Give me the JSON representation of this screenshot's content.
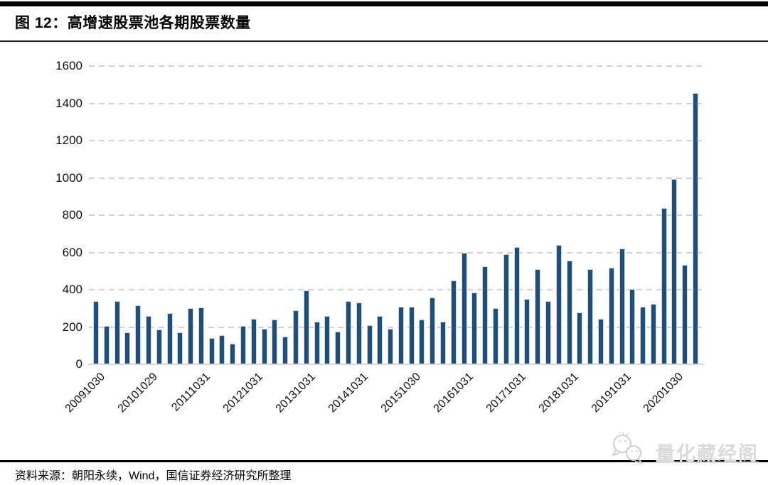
{
  "header": {
    "title": "图 12：高增速股票池各期股票数量"
  },
  "footer": {
    "source": "资料来源：朝阳永续，Wind，国信证券经济研究所整理"
  },
  "watermark": {
    "text": "量化藏经阁",
    "icon": "wechat-chat-bubbles-icon",
    "color": "#d8d8d8"
  },
  "colors": {
    "bar_fill": "#1F4E79",
    "bar_border": "#ccd9e6",
    "gridline": "#d2d2d2",
    "baseline": "#d9d9d9",
    "rule_black": "#000000"
  },
  "chart_data": {
    "type": "bar",
    "title": "图 12：高增速股票池各期股票数量",
    "xlabel": "",
    "ylabel": "",
    "ylim": [
      0,
      1600
    ],
    "y_ticks": [
      0,
      200,
      400,
      600,
      800,
      1000,
      1200,
      1400,
      1600
    ],
    "grid": "horizontal-dashed",
    "legend": "none",
    "n_bars": 58,
    "values": [
      340,
      205,
      340,
      170,
      315,
      260,
      185,
      275,
      170,
      300,
      305,
      140,
      155,
      110,
      205,
      245,
      190,
      240,
      150,
      290,
      395,
      230,
      260,
      175,
      340,
      330,
      210,
      260,
      190,
      310,
      310,
      240,
      360,
      230,
      450,
      600,
      385,
      525,
      300,
      590,
      630,
      350,
      510,
      340,
      640,
      555,
      280,
      510,
      245,
      520,
      620,
      405,
      310,
      325,
      840,
      995,
      535,
      1455
    ],
    "x_tick_labels": [
      "20091030",
      "20101029",
      "20111031",
      "20121031",
      "20131031",
      "20141031",
      "20151030",
      "20161031",
      "20171031",
      "20181031",
      "20191031",
      "20201030"
    ],
    "x_tick_bar_indices": [
      0,
      5,
      10,
      15,
      20,
      25,
      30,
      35,
      40,
      45,
      50,
      55
    ]
  }
}
